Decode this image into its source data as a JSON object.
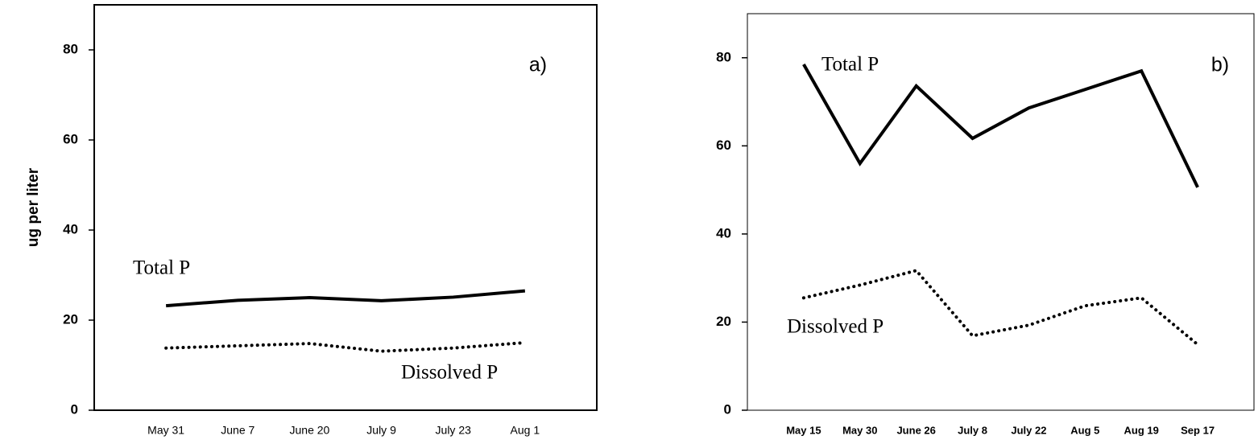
{
  "chart_data": [
    {
      "type": "line",
      "panel_label": "a)",
      "ylabel": "ug per liter",
      "categories": [
        "May 31",
        "June 7",
        "June 20",
        "July 9",
        "July 23",
        "Aug 1"
      ],
      "series": [
        {
          "name": "Total P",
          "color": "#000000",
          "style": "solid",
          "values": [
            23.2,
            24.4,
            25.0,
            24.3,
            25.1,
            26.5
          ]
        },
        {
          "name": "Dissolved P",
          "color": "#000000",
          "style": "dotted",
          "values": [
            13.8,
            14.3,
            14.8,
            13.1,
            13.8,
            15.0
          ]
        }
      ],
      "ylim": [
        0,
        90
      ],
      "yticks": [
        0,
        20,
        40,
        60,
        80
      ]
    },
    {
      "type": "line",
      "panel_label": "b)",
      "categories": [
        "May 15",
        "May 30",
        "June 26",
        "July 8",
        "July 22",
        "Aug 5",
        "Aug 19",
        "Sep 17"
      ],
      "series": [
        {
          "name": "Total P",
          "color": "#000000",
          "style": "solid",
          "values": [
            78.5,
            56.0,
            73.6,
            61.7,
            68.6,
            72.8,
            77.0,
            50.6
          ]
        },
        {
          "name": "Dissolved P",
          "color": "#000000",
          "style": "dotted",
          "values": [
            25.5,
            28.4,
            31.7,
            16.9,
            19.3,
            23.7,
            25.5,
            14.9
          ]
        }
      ],
      "ylim": [
        0,
        90
      ],
      "yticks": [
        0,
        20,
        40,
        60,
        80
      ]
    }
  ]
}
